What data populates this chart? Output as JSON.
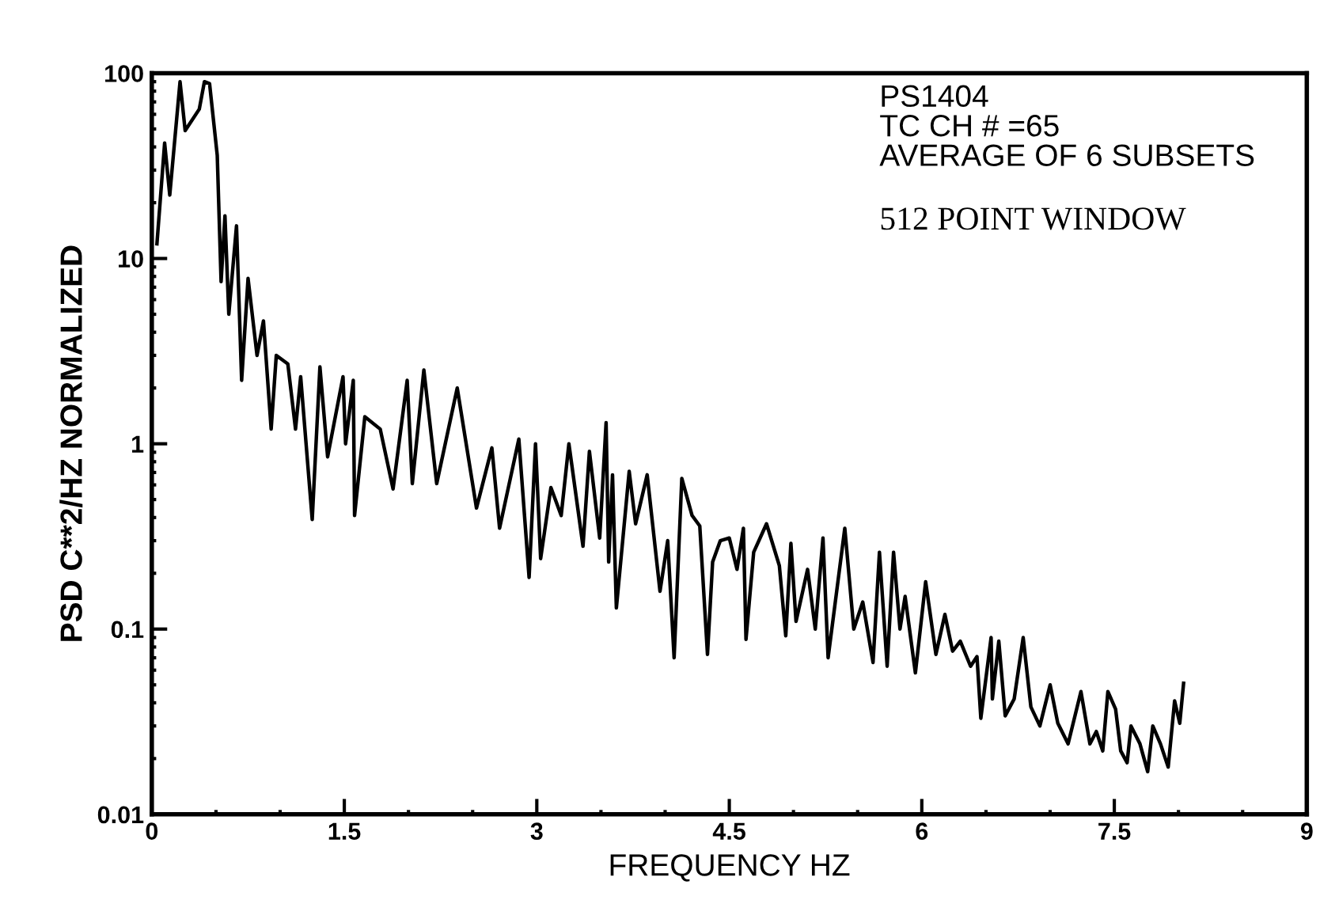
{
  "chart_data": {
    "type": "line",
    "xlabel": "FREQUENCY HZ",
    "ylabel": "PSD C**2/HZ NORMALIZED",
    "annotations": [
      "PS1404",
      "TC CH # =65",
      "AVERAGE OF 6 SUBSETS",
      "512 POINT WINDOW"
    ],
    "log": "y",
    "grid": false,
    "legend": false,
    "marker": "none",
    "line_style": "solid",
    "xlim": [
      0,
      9
    ],
    "xticks": [
      0,
      1.5,
      3,
      4.5,
      6,
      7.5,
      9
    ],
    "ylim": [
      0.01,
      100
    ],
    "yticks": [
      0.01,
      0.1,
      1,
      10,
      100
    ],
    "series": [
      {
        "color": "#000000",
        "x": [
          0.04,
          0.1,
          0.14,
          0.22,
          0.26,
          0.37,
          0.41,
          0.45,
          0.51,
          0.54,
          0.57,
          0.6,
          0.66,
          0.7,
          0.75,
          0.82,
          0.87,
          0.93,
          0.97,
          1.06,
          1.12,
          1.16,
          1.25,
          1.31,
          1.37,
          1.49,
          1.51,
          1.57,
          1.58,
          1.66,
          1.78,
          1.88,
          1.99,
          2.03,
          2.12,
          2.22,
          2.38,
          2.53,
          2.65,
          2.71,
          2.86,
          2.94,
          2.99,
          3.03,
          3.11,
          3.19,
          3.25,
          3.36,
          3.41,
          3.49,
          3.54,
          3.56,
          3.59,
          3.62,
          3.72,
          3.77,
          3.86,
          3.96,
          4.02,
          4.07,
          4.13,
          4.21,
          4.27,
          4.33,
          4.37,
          4.43,
          4.5,
          4.56,
          4.61,
          4.63,
          4.69,
          4.79,
          4.89,
          4.94,
          4.98,
          5.02,
          5.11,
          5.17,
          5.23,
          5.27,
          5.4,
          5.47,
          5.54,
          5.62,
          5.67,
          5.73,
          5.78,
          5.83,
          5.87,
          5.95,
          6.03,
          6.11,
          6.18,
          6.24,
          6.3,
          6.38,
          6.43,
          6.46,
          6.54,
          6.55,
          6.6,
          6.65,
          6.72,
          6.79,
          6.85,
          6.92,
          7.0,
          7.06,
          7.14,
          7.24,
          7.31,
          7.36,
          7.41,
          7.45,
          7.51,
          7.55,
          7.6,
          7.63,
          7.7,
          7.76,
          7.8,
          7.86,
          7.92,
          7.97,
          8.01,
          8.04
        ],
        "values": [
          12,
          42,
          22,
          90,
          49,
          64,
          90,
          88,
          36,
          7.5,
          17,
          5.0,
          15,
          2.2,
          7.8,
          3.0,
          4.6,
          1.2,
          3.0,
          2.7,
          1.2,
          2.3,
          0.39,
          2.6,
          0.85,
          2.3,
          1.0,
          2.2,
          0.41,
          1.4,
          1.2,
          0.57,
          2.2,
          0.61,
          2.5,
          0.61,
          2.0,
          0.45,
          0.95,
          0.35,
          1.06,
          0.19,
          1.0,
          0.24,
          0.58,
          0.41,
          1.0,
          0.28,
          0.91,
          0.31,
          1.3,
          0.23,
          0.68,
          0.13,
          0.71,
          0.37,
          0.68,
          0.16,
          0.3,
          0.07,
          0.65,
          0.41,
          0.36,
          0.073,
          0.23,
          0.3,
          0.31,
          0.21,
          0.35,
          0.088,
          0.26,
          0.37,
          0.22,
          0.092,
          0.29,
          0.11,
          0.21,
          0.1,
          0.31,
          0.07,
          0.35,
          0.1,
          0.14,
          0.066,
          0.26,
          0.063,
          0.26,
          0.1,
          0.15,
          0.058,
          0.18,
          0.073,
          0.12,
          0.076,
          0.086,
          0.063,
          0.071,
          0.033,
          0.09,
          0.042,
          0.086,
          0.034,
          0.042,
          0.09,
          0.038,
          0.03,
          0.05,
          0.031,
          0.024,
          0.046,
          0.024,
          0.028,
          0.022,
          0.046,
          0.037,
          0.022,
          0.019,
          0.03,
          0.024,
          0.017,
          0.03,
          0.024,
          0.018,
          0.041,
          0.031,
          0.051
        ]
      }
    ]
  }
}
